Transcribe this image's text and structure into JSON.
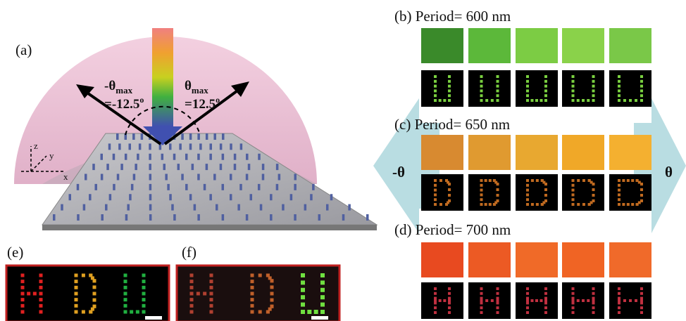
{
  "panel_a": {
    "label": "(a)",
    "left_angle": {
      "symbol": "-θ",
      "subscript": "max",
      "value": "=-12.5",
      "superscript": "o"
    },
    "right_angle": {
      "symbol": "θ",
      "subscript": "max",
      "value": "=12.5",
      "superscript": "o"
    },
    "axes": {
      "z": "z",
      "y": "y",
      "x": "x"
    }
  },
  "panel_b": {
    "label": "(b)",
    "title": "Period= 600 nm"
  },
  "panel_c": {
    "label": "(c)",
    "title": "Period= 650 nm"
  },
  "panel_d": {
    "label": "(d)",
    "title": "Period= 700 nm"
  },
  "side_arrows": {
    "left": "-θ",
    "right": "θ"
  },
  "panel_e": {
    "label": "(e)"
  },
  "panel_f": {
    "label": "(f)"
  }
}
